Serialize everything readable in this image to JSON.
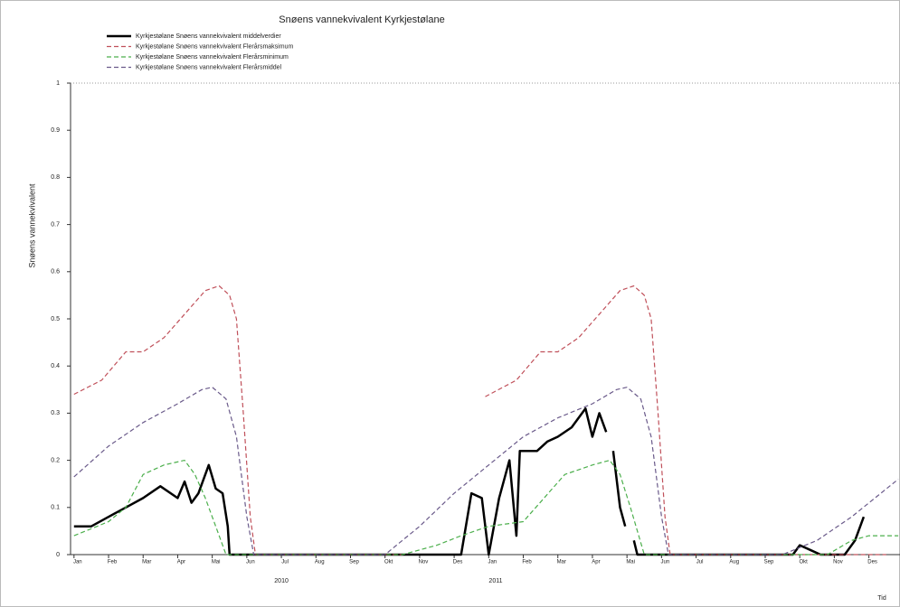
{
  "chart_data": {
    "type": "line",
    "title": "Snøens vannekvivalent Kyrkjestølane",
    "y_label": "Snøens vannekvivalent",
    "x_label": "Tid",
    "ylim": [
      0,
      1
    ],
    "yticks": [
      0,
      0.1,
      0.2,
      0.3,
      0.4,
      0.5,
      0.6,
      0.7,
      0.8,
      0.9,
      1
    ],
    "xlim": [
      -0.1,
      23.9
    ],
    "xticks": [
      {
        "value": 0,
        "label": "Jan"
      },
      {
        "value": 1,
        "label": "Feb"
      },
      {
        "value": 2,
        "label": "Mar"
      },
      {
        "value": 3,
        "label": "Apr"
      },
      {
        "value": 4,
        "label": "Mai"
      },
      {
        "value": 5,
        "label": "Jun"
      },
      {
        "value": 6,
        "label": "Jul"
      },
      {
        "value": 7,
        "label": "Aug"
      },
      {
        "value": 8,
        "label": "Sep"
      },
      {
        "value": 9,
        "label": "Okt"
      },
      {
        "value": 10,
        "label": "Nov"
      },
      {
        "value": 11,
        "label": "Des"
      },
      {
        "value": 12,
        "label": "Jan"
      },
      {
        "value": 13,
        "label": "Feb"
      },
      {
        "value": 14,
        "label": "Mar"
      },
      {
        "value": 15,
        "label": "Apr"
      },
      {
        "value": 16,
        "label": "Mai"
      },
      {
        "value": 17,
        "label": "Jun"
      },
      {
        "value": 18,
        "label": "Jul"
      },
      {
        "value": 19,
        "label": "Aug"
      },
      {
        "value": 20,
        "label": "Sep"
      },
      {
        "value": 21,
        "label": "Okt"
      },
      {
        "value": 22,
        "label": "Nov"
      },
      {
        "value": 23,
        "label": "Des"
      }
    ],
    "year_ticks": [
      {
        "value": 6,
        "label": "2010"
      },
      {
        "value": 12.2,
        "label": "2011"
      }
    ],
    "series": [
      {
        "name": "Kyrkjestølane  Snøens vannekvivalent middelverdier",
        "color": "#000000",
        "dash": "none",
        "width": 2.5,
        "x": [
          0,
          0.5,
          1,
          1.5,
          2,
          2.5,
          3,
          3.2,
          3.4,
          3.6,
          3.9,
          4.1,
          4.3,
          4.45,
          4.5,
          9,
          11.2,
          11.5,
          11.8,
          12,
          12.3,
          12.6,
          12.8,
          12.9,
          13.1,
          13.4,
          13.7,
          14,
          14.4,
          14.8,
          15,
          15.2,
          15.4,
          null,
          15.6,
          15.8,
          15.95,
          null,
          16.2,
          16.3,
          20.8,
          21,
          21.3,
          21.6,
          22.3,
          22.6,
          22.85
        ],
        "values": [
          0.06,
          0.06,
          0.08,
          0.1,
          0.12,
          0.145,
          0.12,
          0.155,
          0.11,
          0.13,
          0.19,
          0.14,
          0.13,
          0.06,
          0,
          0,
          0,
          0.13,
          0.12,
          0,
          0.12,
          0.2,
          0.04,
          0.22,
          0.22,
          0.22,
          0.24,
          0.25,
          0.27,
          0.31,
          0.25,
          0.3,
          0.26,
          null,
          0.22,
          0.1,
          0.06,
          null,
          0.03,
          0,
          0,
          0.02,
          0.01,
          0,
          0,
          0.03,
          0.08
        ]
      },
      {
        "name": "Kyrkjestølane  Snøens vannekvivalent Flerårsmaksimum",
        "color": "#c0505a",
        "dash": "5,3",
        "width": 1.2,
        "x": [
          0,
          0.8,
          1.5,
          2,
          2.6,
          3.2,
          3.8,
          4.2,
          4.5,
          4.7,
          4.9,
          5.1,
          5.25,
          9.5,
          null,
          11.9,
          12.8,
          13.5,
          14,
          14.6,
          15.2,
          15.8,
          16.2,
          16.5,
          16.7,
          16.9,
          17.1,
          17.25,
          23.5,
          null,
          23.85
        ],
        "values": [
          0.34,
          0.37,
          0.43,
          0.43,
          0.46,
          0.51,
          0.56,
          0.57,
          0.55,
          0.5,
          0.3,
          0.08,
          0,
          0,
          null,
          0.335,
          0.37,
          0.43,
          0.43,
          0.46,
          0.51,
          0.56,
          0.57,
          0.55,
          0.5,
          0.3,
          0.08,
          0,
          0,
          null,
          0.34
        ]
      },
      {
        "name": "Kyrkjestølane  Snøens vannekvivalent Flerårsminimum",
        "color": "#4caf4c",
        "dash": "5,3",
        "width": 1.2,
        "x": [
          0,
          1,
          1.5,
          2,
          2.6,
          3.2,
          3.5,
          3.8,
          4.1,
          4.4,
          9.5,
          10.5,
          11.2,
          12,
          13,
          13.6,
          14.2,
          15,
          15.5,
          15.8,
          16.1,
          16.5,
          21.8,
          22.5,
          23,
          23.85
        ],
        "values": [
          0.04,
          0.07,
          0.1,
          0.17,
          0.19,
          0.2,
          0.17,
          0.12,
          0.06,
          0,
          0,
          0.02,
          0.04,
          0.06,
          0.07,
          0.12,
          0.17,
          0.19,
          0.2,
          0.17,
          0.1,
          0,
          0,
          0.03,
          0.04,
          0.04
        ]
      },
      {
        "name": "Kyrkjestølane  Snøens vannekvivalent Flerårsmiddel",
        "color": "#6a5a8a",
        "dash": "5,3",
        "width": 1.2,
        "x": [
          0,
          1,
          2,
          3,
          3.7,
          4.0,
          4.4,
          4.7,
          5.0,
          5.2,
          9,
          10,
          11,
          12,
          13,
          14,
          15,
          15.7,
          16,
          16.4,
          16.7,
          17.0,
          17.2,
          20.5,
          21.5,
          22.5,
          23.85
        ],
        "values": [
          0.165,
          0.23,
          0.28,
          0.32,
          0.35,
          0.355,
          0.33,
          0.25,
          0.08,
          0,
          0,
          0.06,
          0.13,
          0.19,
          0.25,
          0.29,
          0.32,
          0.35,
          0.355,
          0.33,
          0.25,
          0.08,
          0,
          0,
          0.03,
          0.08,
          0.16
        ]
      }
    ]
  }
}
